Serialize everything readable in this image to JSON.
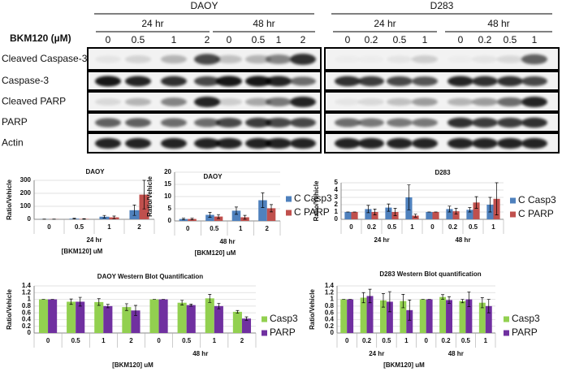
{
  "blots": {
    "dose_label": "BKM120 (µM)",
    "panels": [
      {
        "title": "DAOY",
        "groups": [
          {
            "label": "24 hr",
            "doses": [
              "0",
              "0.5",
              "1",
              "2"
            ]
          },
          {
            "label": "48 hr",
            "doses": [
              "0",
              "0.5",
              "1",
              "2"
            ]
          }
        ]
      },
      {
        "title": "D283",
        "groups": [
          {
            "label": "24 hr",
            "doses": [
              "0",
              "0.2",
              "0.5",
              "1"
            ]
          },
          {
            "label": "48 hr",
            "doses": [
              "0",
              "0.2",
              "0.5",
              "1"
            ]
          }
        ]
      }
    ],
    "rows": [
      "Cleaved Caspase-3",
      "Caspase-3",
      "Cleaved PARP",
      "PARP",
      "Actin"
    ]
  },
  "chart_data": [
    {
      "type": "bar",
      "title": "DAOY",
      "ylabel": "Ratio/Vehicle",
      "xlabel": "[BKM120] uM",
      "categories": [
        "0",
        "0.5",
        "1",
        "2"
      ],
      "group_labels": [
        "24 hr"
      ],
      "ylim": [
        0,
        300
      ],
      "yticks": [
        0,
        100,
        200,
        300
      ],
      "grid": true,
      "series": [
        {
          "color": "#4f81bd",
          "values": [
            1,
            5,
            20,
            70
          ],
          "errors": [
            0.5,
            3,
            10,
            40
          ]
        },
        {
          "color": "#c0504d",
          "values": [
            1,
            3,
            15,
            190
          ],
          "errors": [
            0.5,
            2,
            10,
            110
          ]
        }
      ]
    },
    {
      "type": "bar",
      "title": "DAOY",
      "ylabel": "Ratio/Vehicle",
      "xlabel": "[BKM120] uM",
      "categories": [
        "0",
        "0.5",
        "1",
        "2"
      ],
      "group_labels": [
        "48 hr"
      ],
      "ylim": [
        0,
        20
      ],
      "yticks": [
        0,
        5,
        10,
        15,
        20
      ],
      "grid": true,
      "legend": "right",
      "series": [
        {
          "name": "C Casp3",
          "color": "#4f81bd",
          "values": [
            0.8,
            2.5,
            4.2,
            8.5
          ],
          "errors": [
            0.3,
            1,
            1.5,
            3
          ]
        },
        {
          "name": "C PARP",
          "color": "#c0504d",
          "values": [
            0.8,
            1.8,
            1.5,
            5.2
          ],
          "errors": [
            0.3,
            0.8,
            0.8,
            1.5
          ]
        }
      ]
    },
    {
      "type": "bar",
      "title": "D283",
      "ylabel": "Ratio/Vehicle",
      "xlabel": null,
      "categories": [
        "0",
        "0.2",
        "0.5",
        "1",
        "0",
        "0.2",
        "0.5",
        "1"
      ],
      "group_labels": [
        "24 hr",
        "48 hr"
      ],
      "ylim": [
        0,
        5
      ],
      "yticks": [
        0,
        1,
        2,
        3,
        4,
        5
      ],
      "grid": true,
      "legend": "right",
      "series": [
        {
          "name": "C Casp3",
          "color": "#4f81bd",
          "values": [
            1,
            1.4,
            1.6,
            3,
            1,
            1.4,
            1.3,
            2
          ],
          "errors": [
            0,
            0.5,
            0.5,
            1.7,
            0,
            0.4,
            0.3,
            1
          ]
        },
        {
          "name": "C PARP",
          "color": "#c0504d",
          "values": [
            1,
            1,
            1,
            0.5,
            1,
            1.1,
            2.3,
            2.8
          ],
          "errors": [
            0,
            0.4,
            0.5,
            0.2,
            0,
            0.4,
            0.8,
            2.2
          ]
        }
      ]
    },
    {
      "type": "bar",
      "title": "DAOY  Western Blot Quantification",
      "ylabel": "Ratio/Vehicle",
      "xlabel": "[BKM120] uM",
      "categories": [
        "0",
        "0.5",
        "1",
        "2",
        "0",
        "0.5",
        "1",
        "2"
      ],
      "group_labels": [
        null,
        "48 hr"
      ],
      "ylim": [
        0,
        1.4
      ],
      "yticks": [
        0,
        0.2,
        0.4,
        0.6,
        0.8,
        1,
        1.2,
        1.4
      ],
      "grid": true,
      "legend": "right",
      "series": [
        {
          "name": "Casp3",
          "color": "#92d050",
          "values": [
            1,
            0.93,
            0.92,
            0.77,
            1,
            0.9,
            1.03,
            0.63
          ],
          "errors": [
            0,
            0.08,
            0.1,
            0.1,
            0,
            0.07,
            0.12,
            0.04
          ]
        },
        {
          "name": "PARP",
          "color": "#7030a0",
          "values": [
            1,
            0.93,
            0.8,
            0.67,
            1,
            0.83,
            0.8,
            0.43
          ],
          "errors": [
            0,
            0.13,
            0.05,
            0.15,
            0,
            0.03,
            0.08,
            0.05
          ]
        }
      ]
    },
    {
      "type": "bar",
      "title": "D283 Western Blot quantification",
      "ylabel": "Ratio/Vehicle",
      "xlabel": "[BKM120] uM",
      "categories": [
        "0",
        "0.2",
        "0.5",
        "1",
        "0",
        "0.2",
        "0.5",
        "1"
      ],
      "group_labels": [
        "24 hr",
        "48 hr"
      ],
      "ylim": [
        0,
        1.4
      ],
      "yticks": [
        0,
        0.2,
        0.4,
        0.6,
        0.8,
        1,
        1.2,
        1.4
      ],
      "grid": true,
      "legend": "right",
      "series": [
        {
          "name": "Casp3",
          "color": "#92d050",
          "values": [
            1,
            1.05,
            0.97,
            0.95,
            1,
            1.07,
            0.95,
            0.9
          ],
          "errors": [
            0,
            0.15,
            0.2,
            0.2,
            0,
            0.07,
            0.05,
            0.15
          ]
        },
        {
          "name": "PARP",
          "color": "#7030a0",
          "values": [
            1,
            1.1,
            0.93,
            0.68,
            1,
            0.98,
            1,
            0.8
          ],
          "errors": [
            0,
            0.2,
            0.3,
            0.3,
            0,
            0.1,
            0.22,
            0.2
          ]
        }
      ]
    }
  ]
}
